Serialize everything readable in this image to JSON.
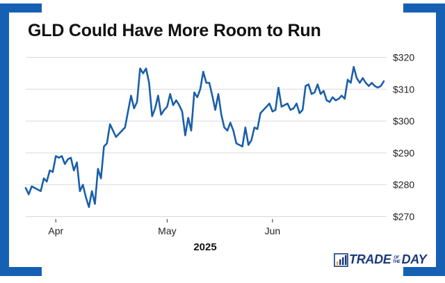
{
  "title": "GLD Could Have More Room to Run",
  "colors": {
    "line": "#1a5fa8",
    "frame": "#1660b4",
    "grid": "#d9d9d9",
    "logo": "#1a3a7a"
  },
  "logo": {
    "part1": "TRADE",
    "small_top": "OF",
    "small_bottom": "THE",
    "part2": "DAY",
    "icon": "bar-chart-icon"
  },
  "chart_data": {
    "type": "line",
    "title": "GLD Could Have More Room to Run",
    "xlabel": "2025",
    "ylabel": "",
    "x_tick_labels": [
      {
        "label": "Apr",
        "index": 10
      },
      {
        "label": "May",
        "index": 47
      },
      {
        "label": "Jun",
        "index": 82
      }
    ],
    "y_ticks": [
      270,
      280,
      290,
      300,
      310,
      320
    ],
    "y_tick_labels": [
      "$270",
      "$280",
      "$290",
      "$300",
      "$310",
      "$320"
    ],
    "ylim": [
      268,
      322
    ],
    "grid": "horizontal",
    "series": [
      {
        "values": [
          279,
          277,
          279.5,
          279,
          278.5,
          278,
          282,
          281,
          284.5,
          284,
          289,
          288.5,
          289,
          286.5,
          288,
          288.5,
          284.5,
          287,
          278,
          280,
          276,
          273,
          278,
          274,
          285,
          282,
          292,
          293,
          299,
          297,
          295,
          296,
          297,
          298,
          303,
          308,
          304,
          306,
          316.5,
          315,
          316.5,
          312,
          301.5,
          304,
          308,
          302,
          303.5,
          304.5,
          308.5,
          305,
          306.5,
          305,
          303,
          295.5,
          301,
          297,
          309,
          307.5,
          310,
          315.5,
          312,
          312,
          308,
          303.5,
          308.5,
          302,
          298,
          297,
          299.5,
          297,
          293,
          292.5,
          292,
          298,
          292.5,
          294,
          298,
          297.5,
          302.5,
          303.5,
          304.5,
          305.5,
          303,
          303.5,
          310.5,
          304.5,
          305,
          305.5,
          303.5,
          304,
          305.5,
          302.5,
          303.5,
          311,
          311.5,
          308.5,
          309,
          311.5,
          308.5,
          309.5,
          306.5,
          306,
          307.5,
          306.5,
          307,
          308,
          307,
          313,
          312,
          317,
          313.5,
          312,
          313.5,
          312,
          311,
          312,
          311,
          310.5,
          311,
          312.5
        ]
      }
    ]
  }
}
